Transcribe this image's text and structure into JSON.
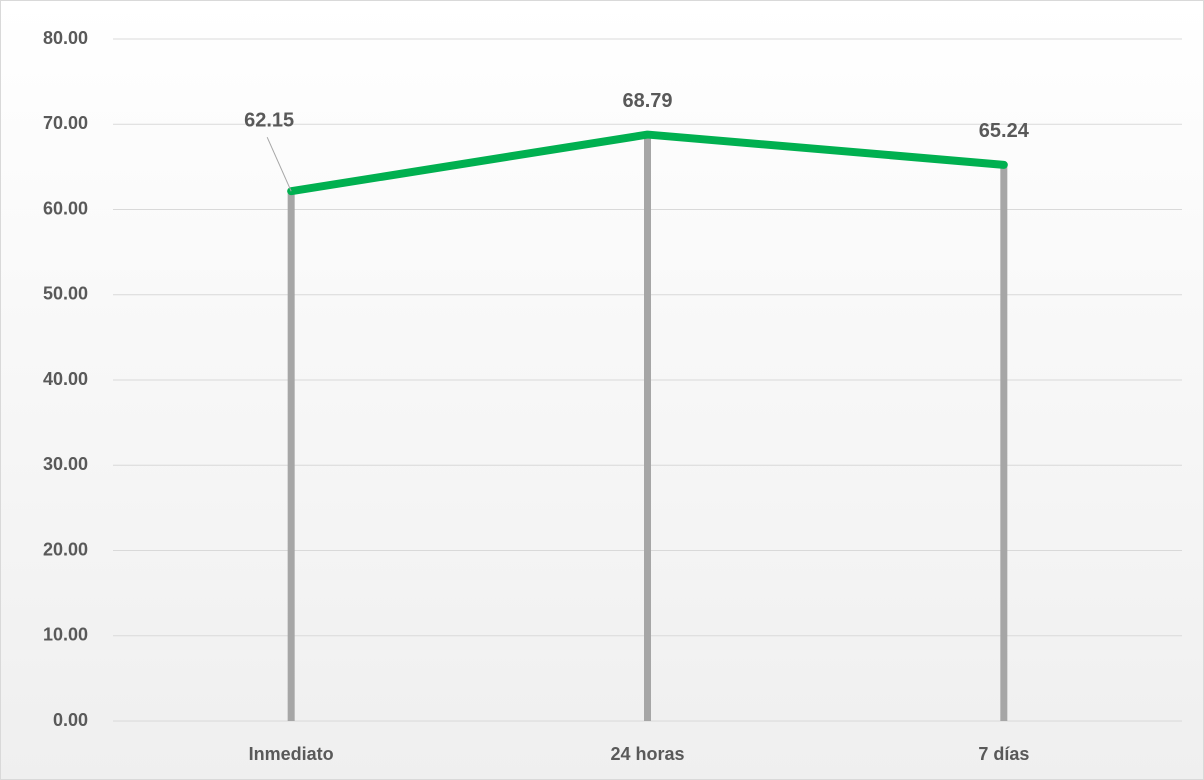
{
  "chart_data": {
    "type": "line",
    "categories": [
      "Inmediato",
      "24 horas",
      "7 días"
    ],
    "values": [
      62.15,
      68.79,
      65.24
    ],
    "color": "#00b050",
    "drop_line_color": "#a6a6a6",
    "ylim": [
      0,
      80
    ],
    "yticks": [
      {
        "value": 0,
        "label": "0.00"
      },
      {
        "value": 10,
        "label": "10.00"
      },
      {
        "value": 20,
        "label": "20.00"
      },
      {
        "value": 30,
        "label": "30.00"
      },
      {
        "value": 40,
        "label": "40.00"
      },
      {
        "value": 50,
        "label": "50.00"
      },
      {
        "value": 60,
        "label": "60.00"
      },
      {
        "value": 70,
        "label": "70.00"
      },
      {
        "value": 80,
        "label": "80.00"
      }
    ],
    "grid": true
  }
}
